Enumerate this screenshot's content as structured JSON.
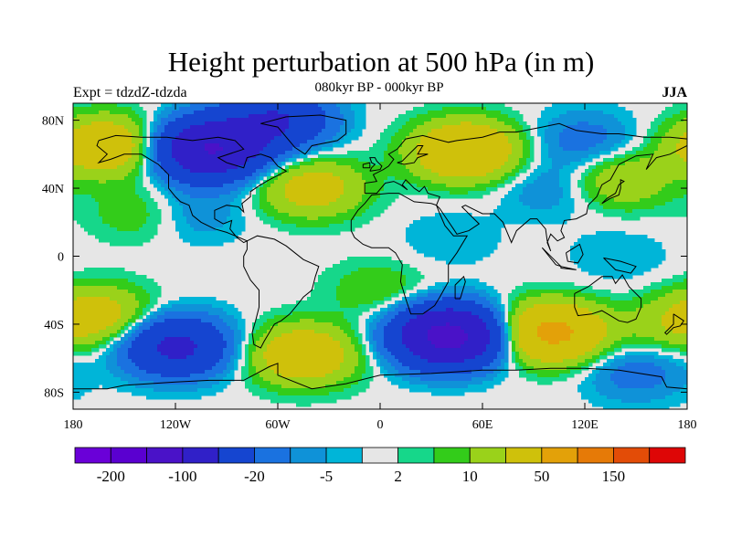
{
  "title": "Height perturbation at 500 hPa (in m)",
  "left_string": "Expt = tdzdZ-tdzda",
  "center_string": "080kyr BP - 000kyr BP",
  "right_string": "JJA",
  "map": {
    "projection": "cylindrical-equidistant",
    "lon_range": [
      -180,
      180
    ],
    "lat_range": [
      -90,
      90
    ],
    "lon_ticks": [
      {
        "value": -180,
        "label": "180"
      },
      {
        "value": -120,
        "label": "120W"
      },
      {
        "value": -60,
        "label": "60W"
      },
      {
        "value": 0,
        "label": "0"
      },
      {
        "value": 60,
        "label": "60E"
      },
      {
        "value": 120,
        "label": "120E"
      },
      {
        "value": 180,
        "label": "180"
      }
    ],
    "lat_ticks": [
      {
        "value": 80,
        "label": "80N"
      },
      {
        "value": 40,
        "label": "40N"
      },
      {
        "value": 0,
        "label": "0"
      },
      {
        "value": -40,
        "label": "40S"
      },
      {
        "value": -80,
        "label": "80S"
      }
    ],
    "missing_color": "#e6e6e6",
    "anomalies": [
      {
        "lon": -100,
        "lat": 63,
        "value": -100
      },
      {
        "lon": -60,
        "lat": 80,
        "value": -50
      },
      {
        "lon": -160,
        "lat": 65,
        "value": 40
      },
      {
        "lon": -40,
        "lat": 40,
        "value": 30
      },
      {
        "lon": 50,
        "lat": 62,
        "value": 50
      },
      {
        "lon": 120,
        "lat": 68,
        "value": -15
      },
      {
        "lon": 140,
        "lat": 45,
        "value": 20
      },
      {
        "lon": 100,
        "lat": 40,
        "value": -10
      },
      {
        "lon": -140,
        "lat": 25,
        "value": 10
      },
      {
        "lon": -110,
        "lat": 25,
        "value": -10
      },
      {
        "lon": 40,
        "lat": 10,
        "value": -5
      },
      {
        "lon": 140,
        "lat": 0,
        "value": -5
      },
      {
        "lon": -165,
        "lat": -35,
        "value": 30
      },
      {
        "lon": -120,
        "lat": -53,
        "value": -60
      },
      {
        "lon": -45,
        "lat": -58,
        "value": 40
      },
      {
        "lon": 40,
        "lat": -47,
        "value": -120
      },
      {
        "lon": 100,
        "lat": -45,
        "value": 60
      },
      {
        "lon": 165,
        "lat": -42,
        "value": 10
      },
      {
        "lon": 150,
        "lat": -68,
        "value": -15
      },
      {
        "lon": 0,
        "lat": -20,
        "value": 10
      }
    ]
  },
  "colorbar": {
    "colors": [
      "#6a00d8",
      "#5a00d0",
      "#4a12c8",
      "#3020c8",
      "#1545d0",
      "#1a72e0",
      "#0f92d8",
      "#00b5d8",
      "#e6e6e6",
      "#16d78a",
      "#33cc1a",
      "#9ad21a",
      "#cfc10b",
      "#e3a109",
      "#e67a07",
      "#e34c07",
      "#de0606"
    ],
    "levels": [
      -200,
      -150,
      -100,
      -50,
      -20,
      -10,
      -5,
      -2,
      2,
      5,
      10,
      20,
      50,
      100,
      150,
      200
    ],
    "labels": [
      {
        "after_box": 1,
        "text": "-200"
      },
      {
        "after_box": 3,
        "text": "-100"
      },
      {
        "after_box": 5,
        "text": "-20"
      },
      {
        "after_box": 7,
        "text": "-5"
      },
      {
        "after_box": 9,
        "text": "2"
      },
      {
        "after_box": 11,
        "text": "10"
      },
      {
        "after_box": 13,
        "text": "50"
      },
      {
        "after_box": 15,
        "text": "150"
      }
    ]
  }
}
